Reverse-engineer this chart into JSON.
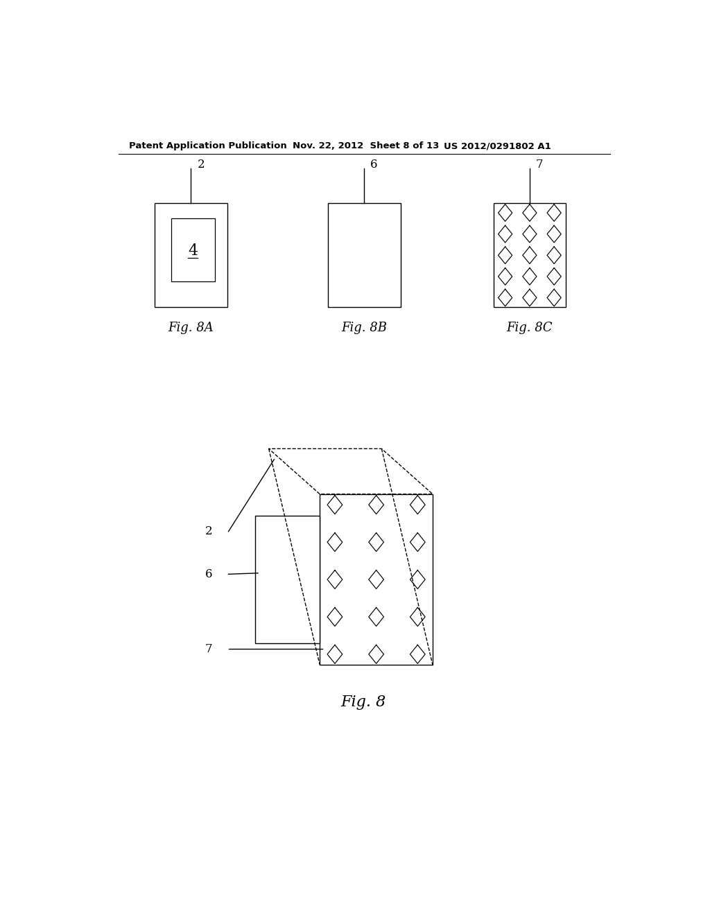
{
  "bg_color": "#ffffff",
  "line_color": "#000000",
  "header_left": "Patent Application Publication",
  "header_mid": "Nov. 22, 2012  Sheet 8 of 13",
  "header_right": "US 2012/0291802 A1",
  "header_fontsize": 9.5,
  "fig8A_label": "Fig. 8A",
  "fig8B_label": "Fig. 8B",
  "fig8C_label": "Fig. 8C",
  "fig8_label": "Fig. 8",
  "fig_label_fontsize": 13,
  "ref_fontsize": 12,
  "inner_label_fontsize": 16,
  "diamond_rows": 5,
  "diamond_cols": 3,
  "lw": 1.0
}
